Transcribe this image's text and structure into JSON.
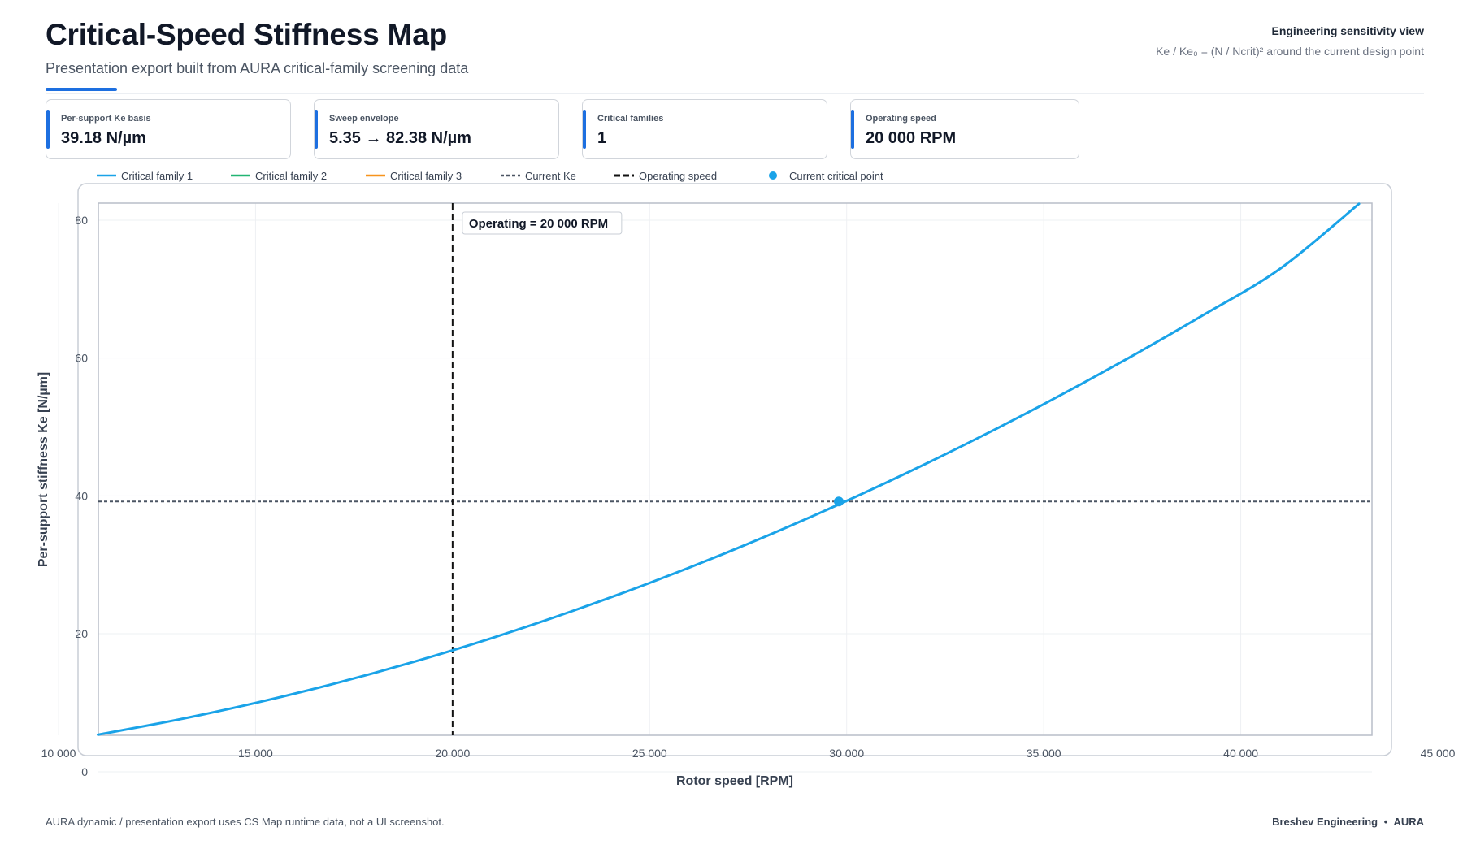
{
  "header": {
    "title": "Critical-Speed Stiffness Map",
    "subtitle": "Presentation export built from AURA critical-family screening data",
    "right_heading": "Engineering sensitivity view",
    "right_note": "Ke / Ke₀ = (N / Ncrit)² around the current design point"
  },
  "kpis": [
    {
      "label": "Per-support Ke basis",
      "value": "39.18 N/µm"
    },
    {
      "label": "Sweep envelope",
      "value": "5.35 → 82.38 N/µm"
    },
    {
      "label": "Critical families",
      "value": "1"
    },
    {
      "label": "Operating speed",
      "value": "20 000 RPM"
    }
  ],
  "colors": {
    "accent": "#1d6fe0",
    "family1": "#1aa3e8",
    "family2": "#22b573",
    "family3": "#f7941d",
    "current_ke": "#4b5563",
    "operating": "#111111",
    "grid": "#eef0f3",
    "frame": "#b9bec8"
  },
  "chart_data": {
    "type": "line",
    "xlabel": "Rotor speed [RPM]",
    "ylabel": "Per-support stiffness Ke [N/µm]",
    "xlim": [
      10000,
      45000
    ],
    "ylim": [
      0,
      82.38
    ],
    "x_ticks": [
      "10 000",
      "15 000",
      "20 000",
      "25 000",
      "30 000",
      "35 000",
      "40 000",
      "45 000"
    ],
    "y_ticks": [
      "0",
      "20",
      "40",
      "60",
      "80"
    ],
    "x_tick_values": [
      10000,
      15000,
      20000,
      25000,
      30000,
      35000,
      40000,
      45000
    ],
    "y_tick_values": [
      0,
      20,
      40,
      60,
      80
    ],
    "legend": [
      {
        "name": "Critical family 1",
        "style": "solid",
        "color_key": "family1"
      },
      {
        "name": "Critical family 2",
        "style": "solid",
        "color_key": "family2"
      },
      {
        "name": "Critical family 3",
        "style": "solid",
        "color_key": "family3"
      },
      {
        "name": "Current Ke",
        "style": "dashed",
        "color_key": "current_ke"
      },
      {
        "name": "Operating speed",
        "style": "dashed-bold",
        "color_key": "operating"
      },
      {
        "name": "Current critical point",
        "style": "marker",
        "color_key": "family1"
      }
    ],
    "series": [
      {
        "name": "Critical family 1",
        "x": [
          11000,
          13000,
          15000,
          17000,
          19000,
          21000,
          23000,
          25000,
          27000,
          29000,
          31000,
          33000,
          35000,
          37000,
          39000,
          41000,
          43000
        ],
        "values": [
          5.35,
          7.5,
          9.96,
          12.76,
          15.9,
          19.38,
          23.21,
          27.37,
          31.87,
          36.72,
          41.91,
          47.44,
          53.31,
          59.52,
          66.08,
          72.97,
          82.38
        ]
      }
    ],
    "current_ke": 39.18,
    "operating_speed": 20000,
    "operating_label": "Operating = 20 000 RPM",
    "current_point": {
      "x": 29800,
      "y": 39.18
    },
    "grid": true,
    "legend_position": "top"
  },
  "footer": {
    "left": "AURA dynamic / presentation export uses CS Map runtime data, not a UI screenshot.",
    "right_company": "Breshev Engineering",
    "right_separator": "•",
    "right_product": "AURA"
  }
}
